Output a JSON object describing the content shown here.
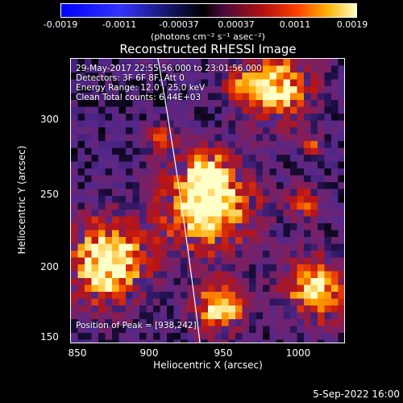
{
  "colorbar": {
    "ticks": [
      "-0.0019",
      "-0.0011",
      "-0.00037",
      "0.00037",
      "0.0011",
      "0.0019"
    ],
    "units": "(photons cm⁻² s⁻¹ asec⁻²)",
    "colors": [
      "#0000ff",
      "#000000",
      "#b01010",
      "#ff4000",
      "#ffb000",
      "#ffffc0"
    ]
  },
  "title": "Reconstructed RHESSI Image",
  "info": {
    "time": "29-May-2017 22:55:56.000 to 23:01:56.000",
    "detectors": "Detectors: 3F 6F 8F, Att 0",
    "energy": "Energy Range: 12.0 - 25.0 keV",
    "clean": "Clean     Total counts: 6.44E+03",
    "peak": "Position of Peak = [938,242]"
  },
  "axes": {
    "xlabel": "Heliocentric X (arcsec)",
    "ylabel": "Heliocentric Y (arcsec)",
    "xticks": [
      "850",
      "900",
      "950",
      "1000"
    ],
    "yticks": [
      "300",
      "250",
      "200",
      "150"
    ]
  },
  "footer": {
    "date": "5-Sep-2022 16:00"
  }
}
